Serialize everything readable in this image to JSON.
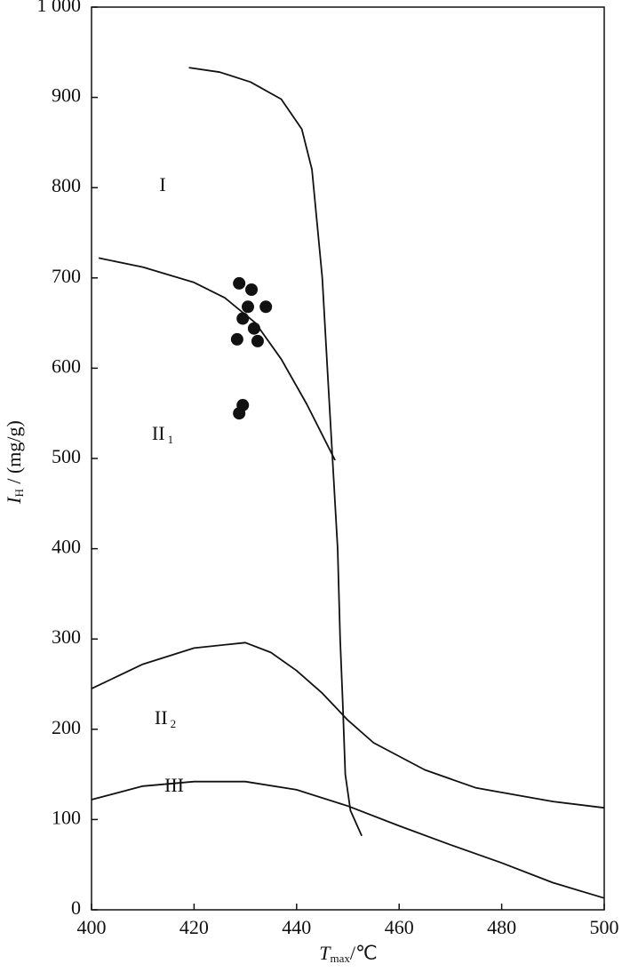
{
  "chart_data": {
    "type": "scatter",
    "xlabel": {
      "main": "T",
      "sub": "max",
      "rest": "/℃"
    },
    "ylabel": {
      "main": "I",
      "sub": "H",
      "rest": " / (mg/g)"
    },
    "xlim": [
      400,
      500
    ],
    "ylim": [
      0,
      1000
    ],
    "xticks": [
      400,
      420,
      440,
      460,
      480,
      500
    ],
    "yticks": [
      0,
      100,
      200,
      300,
      400,
      500,
      600,
      700,
      800,
      900,
      {
        "value": 1000,
        "label": "1 000"
      }
    ],
    "color": "#111111",
    "series": [
      {
        "mode": "line",
        "x": [
          419,
          425,
          431,
          437,
          441,
          443,
          444,
          445,
          446,
          447,
          448,
          448.5,
          449,
          449.5,
          450.5,
          452.7
        ],
        "values": [
          933,
          928,
          917,
          898,
          865,
          820,
          760,
          700,
          600,
          500,
          400,
          300,
          230,
          150,
          110,
          82
        ]
      },
      {
        "mode": "line",
        "x": [
          401.4,
          410,
          420,
          426,
          432,
          437,
          442,
          447.5
        ],
        "values": [
          722,
          712,
          695,
          678,
          650,
          610,
          560,
          498
        ]
      },
      {
        "mode": "line",
        "x": [
          400,
          410,
          420,
          430,
          435,
          440,
          445,
          450,
          455,
          465,
          475,
          490,
          500
        ],
        "values": [
          245,
          272,
          290,
          296,
          285,
          265,
          240,
          210,
          185,
          155,
          135,
          120,
          113
        ]
      },
      {
        "mode": "line",
        "x": [
          400,
          410,
          420,
          430,
          440,
          450,
          460,
          470,
          480,
          490,
          500
        ],
        "values": [
          122,
          137,
          142,
          142,
          133,
          115,
          93,
          72,
          52,
          30,
          13
        ]
      },
      {
        "mode": "points",
        "x": [
          428.8,
          431.2,
          430.5,
          434.0,
          429.5,
          431.7,
          428.4,
          432.4,
          429.5,
          428.8
        ],
        "values": [
          694,
          687,
          668,
          668,
          655,
          644,
          632,
          630,
          559,
          550
        ]
      }
    ],
    "annotations": [
      {
        "text": "I"
      },
      {
        "text": "II",
        "sub": "1"
      },
      {
        "text": "II",
        "sub": "2"
      },
      {
        "text": "III"
      }
    ]
  }
}
